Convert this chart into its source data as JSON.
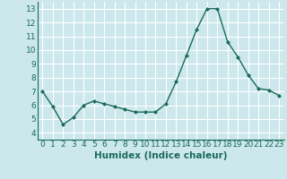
{
  "x": [
    0,
    1,
    2,
    3,
    4,
    5,
    6,
    7,
    8,
    9,
    10,
    11,
    12,
    13,
    14,
    15,
    16,
    17,
    18,
    19,
    20,
    21,
    22,
    23
  ],
  "y": [
    7.0,
    5.9,
    4.6,
    5.1,
    6.0,
    6.3,
    6.1,
    5.9,
    5.7,
    5.5,
    5.5,
    5.5,
    6.1,
    7.7,
    9.6,
    11.5,
    13.0,
    13.0,
    10.6,
    9.5,
    8.2,
    7.2,
    7.1,
    6.7
  ],
  "xlabel": "Humidex (Indice chaleur)",
  "ylim": [
    3.5,
    13.5
  ],
  "xlim": [
    -0.5,
    23.5
  ],
  "yticks": [
    4,
    5,
    6,
    7,
    8,
    9,
    10,
    11,
    12,
    13
  ],
  "xticks": [
    0,
    1,
    2,
    3,
    4,
    5,
    6,
    7,
    8,
    9,
    10,
    11,
    12,
    13,
    14,
    15,
    16,
    17,
    18,
    19,
    20,
    21,
    22,
    23
  ],
  "line_color": "#1a6b5a",
  "marker": "D",
  "marker_size": 2.0,
  "bg_color": "#cce8ec",
  "grid_color": "#ffffff",
  "tick_color": "#1a6b5a",
  "label_color": "#1a6b5a",
  "xlabel_fontsize": 7.5,
  "tick_fontsize": 6.5
}
